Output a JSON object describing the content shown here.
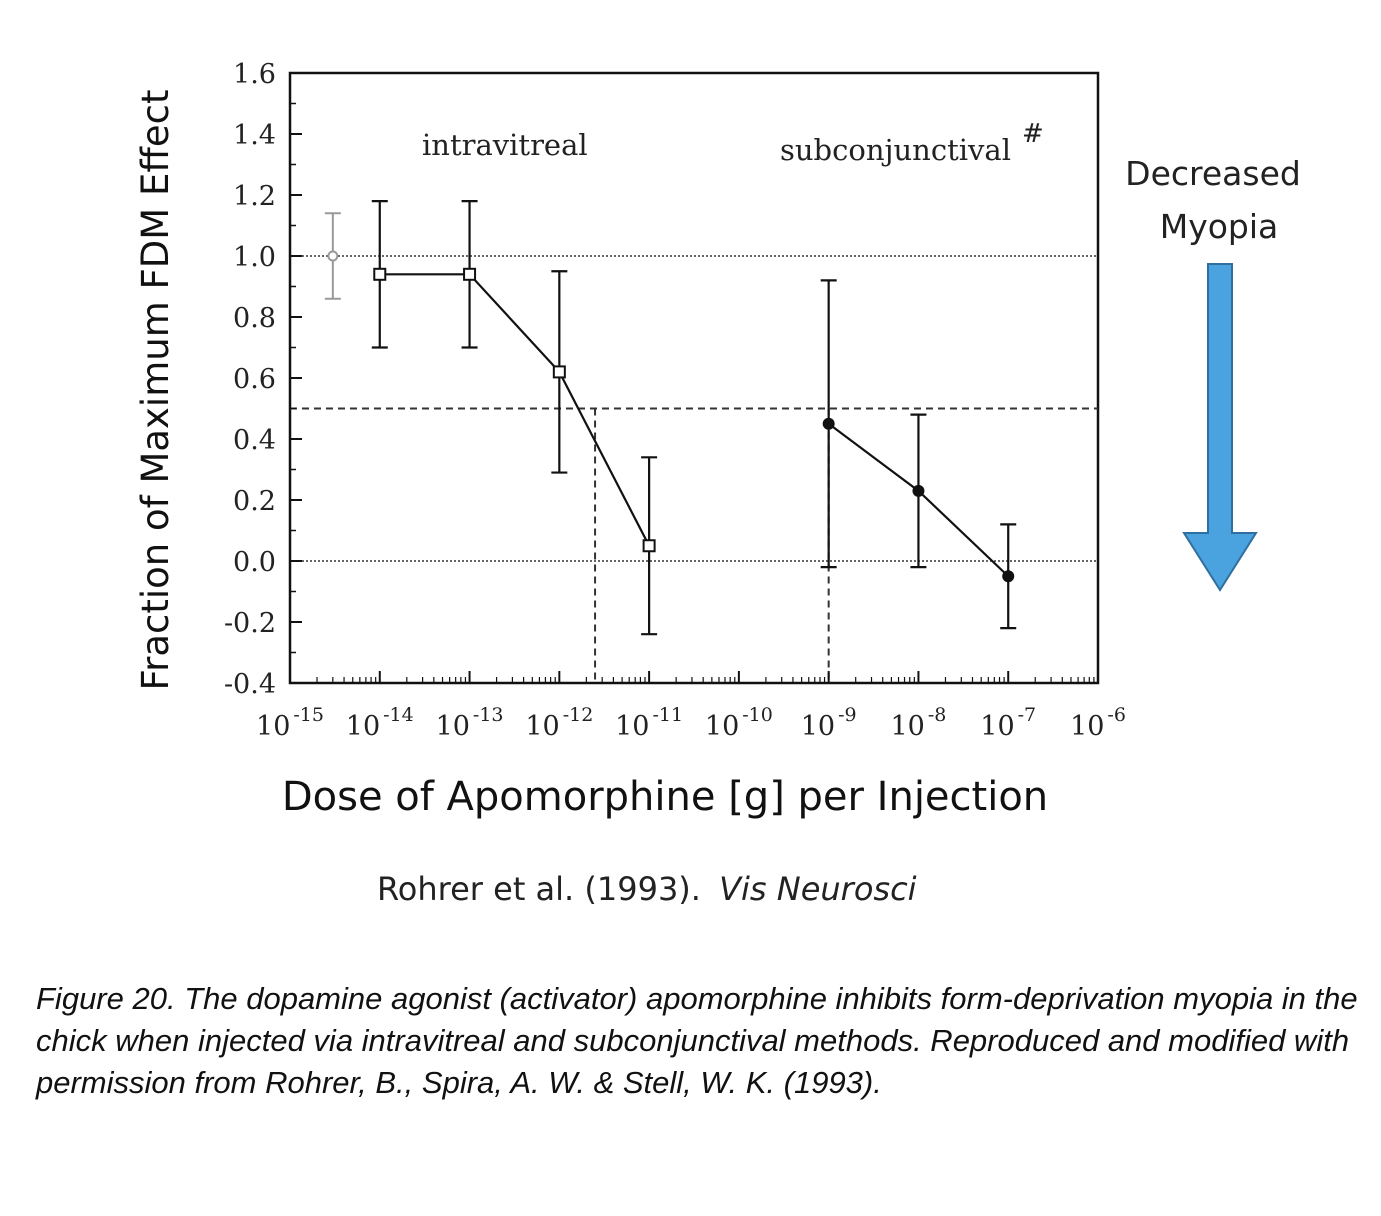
{
  "chart_data": {
    "type": "line",
    "x_scale": "log",
    "x_ticks": [
      "10^-15",
      "10^-14",
      "10^-13",
      "10^-12",
      "10^-11",
      "10^-10",
      "10^-9",
      "10^-8",
      "10^-7",
      "10^-6"
    ],
    "x_tick_exponents": [
      -15,
      -14,
      -13,
      -12,
      -11,
      -10,
      -9,
      -8,
      -7,
      -6
    ],
    "xlim": [
      1e-15,
      1e-06
    ],
    "ylim": [
      -0.4,
      1.6
    ],
    "y_ticks": [
      "-0.4",
      "-0.2",
      "0.0",
      "0.2",
      "0.4",
      "0.6",
      "0.8",
      "1.0",
      "1.2",
      "1.4",
      "1.6"
    ],
    "xlabel": "Dose of Apomorphine [g] per Injection",
    "ylabel": "Fraction of Maximum FDM Effect",
    "grid": false,
    "reference_lines": {
      "y_values": [
        1.0,
        0.5,
        0.0
      ],
      "ed50_doses": [
        2.5e-12,
        1e-09
      ]
    },
    "control_point": {
      "x": 3e-15,
      "y": 1.0,
      "err": 0.14
    },
    "series": [
      {
        "marker": "open-square",
        "x": [
          1e-14,
          1e-13,
          1e-12,
          1e-11
        ],
        "y": [
          0.94,
          0.94,
          0.62,
          0.05
        ],
        "err": [
          0.24,
          0.24,
          0.33,
          0.29
        ]
      },
      {
        "marker": "filled-circle",
        "x": [
          1e-09,
          1e-08,
          1e-07
        ],
        "y": [
          0.45,
          0.23,
          -0.05
        ],
        "err": [
          0.47,
          0.25,
          0.17
        ]
      }
    ],
    "annotations": {
      "intravitreal": "intravitreal",
      "subconjunctival": "subconjunctival",
      "hash": "#"
    }
  },
  "side_note": {
    "line1": "Decreased",
    "line2": "Myopia",
    "arrow_color": "#4aa3df"
  },
  "citation": {
    "authors": "Rohrer et al. (1993).",
    "journal": "Vis Neurosci"
  },
  "caption": "Figure 20. The dopamine agonist (activator) apomorphine inhibits form-deprivation myopia in the chick when injected via intravitreal and subconjunctival methods. Reproduced and modified with permission from Rohrer, B., Spira, A. W. & Stell, W. K. (1993)."
}
